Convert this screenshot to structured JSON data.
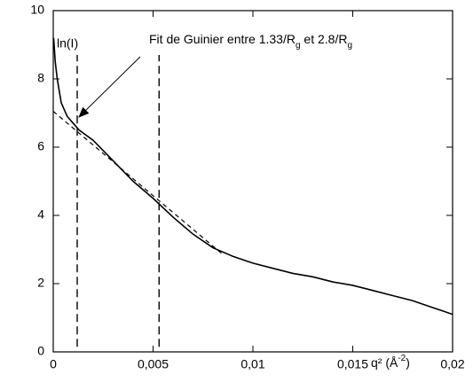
{
  "chart_data": {
    "type": "line",
    "ylabel": "ln(I)",
    "xlabel": [
      "q² (Å",
      "-2",
      ")"
    ],
    "annotation": [
      "Fit de Guinier entre 1.33/R",
      "g",
      " et 2.8/R",
      "g"
    ],
    "xlim": [
      0,
      0.02
    ],
    "ylim": [
      0,
      10
    ],
    "xticks": [
      0,
      {
        "value": 0.005,
        "label": "0,005"
      },
      {
        "value": 0.01,
        "label": "0,01"
      },
      {
        "value": 0.015,
        "label": "0,015"
      },
      {
        "value": 0.02,
        "label": "0,02"
      }
    ],
    "yticks": [
      0,
      2,
      4,
      6,
      8,
      10
    ],
    "series": [
      {
        "color": "#000000",
        "style": "solid",
        "x": [
          2e-05,
          0.0001,
          0.0002,
          0.0004,
          0.0007,
          0.001,
          0.0013,
          0.002,
          0.003,
          0.004,
          0.005,
          0.006,
          0.007,
          0.008,
          0.009,
          0.01,
          0.011,
          0.012,
          0.013,
          0.014,
          0.015,
          0.016,
          0.017,
          0.018,
          0.019,
          0.0195,
          0.02
        ],
        "values": [
          9.2,
          8.5,
          8.0,
          7.3,
          6.9,
          6.7,
          6.5,
          6.2,
          5.6,
          5.0,
          4.5,
          3.95,
          3.45,
          3.05,
          2.8,
          2.6,
          2.45,
          2.3,
          2.2,
          2.05,
          1.95,
          1.8,
          1.65,
          1.5,
          1.3,
          1.2,
          1.1
        ]
      },
      {
        "color": "#000000",
        "style": "dashed",
        "x": [
          0,
          0.0085
        ],
        "values": [
          7.05,
          2.85
        ]
      }
    ],
    "vlines": [
      0.0012,
      0.0053
    ],
    "vline_ylim": [
      0.15,
      8.7
    ]
  }
}
